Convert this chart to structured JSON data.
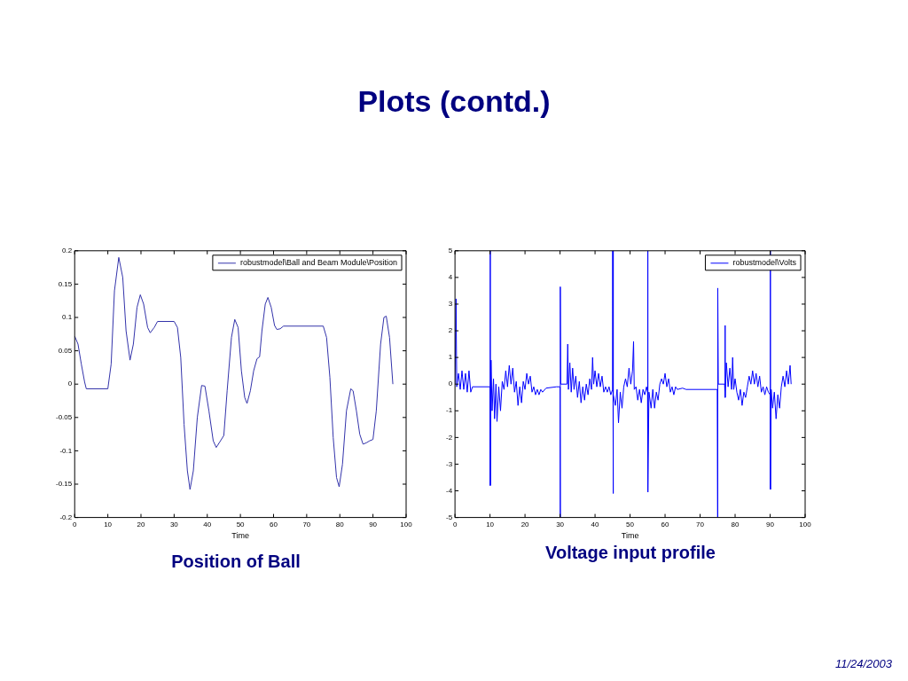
{
  "chart_data": [
    {
      "type": "line",
      "title": "Position of Ball",
      "annotations": [
        "Plots (contd.)",
        "11/24/2003"
      ],
      "xlabel": "Time",
      "legend": "top right",
      "grid": false,
      "marker": "none",
      "line_style": "solid",
      "xlim": [
        0,
        100
      ],
      "xticks": [
        0,
        10,
        20,
        30,
        40,
        50,
        60,
        70,
        80,
        90,
        100
      ],
      "ylim": [
        -0.2,
        0.2
      ],
      "yticks": [
        -0.2,
        -0.15,
        -0.1,
        -0.05,
        0,
        0.05,
        0.1,
        0.15,
        0.2
      ],
      "series": [
        {
          "name": "robustmodel\\Ball and Beam Module\\Position",
          "color": "#3333aa",
          "x": [
            0,
            1,
            2,
            3,
            3.5,
            10,
            11,
            12,
            13.3,
            14.5,
            15.5,
            16.7,
            17.7,
            18.8,
            19.8,
            20.8,
            22,
            22.8,
            24,
            25,
            30,
            31,
            32,
            33,
            34,
            34.8,
            35.8,
            37,
            38.3,
            39.3,
            40.5,
            41.8,
            42.7,
            44,
            45,
            46,
            47.3,
            48.3,
            49.3,
            50.3,
            51.3,
            52,
            53,
            54,
            55,
            55.8,
            56.5,
            57.5,
            58.3,
            59.3,
            60.3,
            61,
            62,
            63,
            75,
            76,
            77,
            78,
            79,
            79.8,
            80.8,
            82,
            83.3,
            84,
            85,
            86,
            87,
            88,
            89,
            90,
            91,
            92.3,
            93.3,
            94,
            95,
            96
          ],
          "values": [
            0.072,
            0.06,
            0.03,
            0.003,
            -0.007,
            -0.007,
            0.03,
            0.14,
            0.19,
            0.16,
            0.08,
            0.036,
            0.06,
            0.115,
            0.134,
            0.12,
            0.085,
            0.077,
            0.085,
            0.094,
            0.094,
            0.085,
            0.04,
            -0.06,
            -0.13,
            -0.158,
            -0.13,
            -0.05,
            -0.002,
            -0.003,
            -0.04,
            -0.085,
            -0.095,
            -0.085,
            -0.077,
            -0.01,
            0.07,
            0.097,
            0.085,
            0.02,
            -0.02,
            -0.029,
            -0.01,
            0.02,
            0.038,
            0.041,
            0.08,
            0.12,
            0.13,
            0.115,
            0.088,
            0.082,
            0.083,
            0.087,
            0.087,
            0.07,
            0.01,
            -0.08,
            -0.14,
            -0.154,
            -0.12,
            -0.04,
            -0.007,
            -0.01,
            -0.04,
            -0.075,
            -0.09,
            -0.088,
            -0.085,
            -0.083,
            -0.04,
            0.06,
            0.1,
            0.102,
            0.07,
            0
          ]
        }
      ]
    },
    {
      "type": "line",
      "title": "Voltage input profile",
      "xlabel": "Time",
      "legend": "top right",
      "grid": false,
      "marker": "none",
      "line_style": "solid",
      "xlim": [
        0,
        100
      ],
      "xticks": [
        0,
        10,
        20,
        30,
        40,
        50,
        60,
        70,
        80,
        90,
        100
      ],
      "ylim": [
        -5,
        5
      ],
      "yticks": [
        -5,
        -4,
        -3,
        -2,
        -1,
        0,
        1,
        2,
        3,
        4,
        5
      ],
      "series": [
        {
          "name": "robustmodel\\Volts",
          "color": "#0000ff",
          "x": [
            0,
            0.3,
            0.5,
            1,
            1.5,
            2,
            2.5,
            3,
            3.5,
            4,
            4.5,
            5,
            10,
            10.05,
            10.1,
            10.3,
            10.6,
            11,
            11.3,
            11.7,
            12,
            12.5,
            13,
            13.5,
            14,
            14.5,
            15,
            15.5,
            16,
            16.5,
            17,
            17.5,
            18,
            18.5,
            19,
            19.5,
            20,
            20.5,
            21,
            21.5,
            22,
            22.5,
            23,
            23.5,
            24,
            24.5,
            25,
            26,
            29,
            30,
            30.05,
            30.1,
            30.2,
            32,
            32.2,
            32.4,
            32.8,
            33.2,
            33.6,
            34,
            34.5,
            35,
            35.5,
            36,
            36.5,
            37,
            37.5,
            38,
            38.5,
            39,
            39.3,
            39.6,
            40,
            40.5,
            41,
            41.5,
            42,
            42.5,
            43,
            43.5,
            44,
            44.5,
            45,
            45.05,
            45.1,
            45.3,
            45.8,
            46.3,
            46.7,
            47.2,
            47.7,
            48.2,
            48.7,
            49.2,
            49.7,
            50.2,
            50.7,
            51,
            51.2,
            51.7,
            52.2,
            52.7,
            53.2,
            53.7,
            54.2,
            54.7,
            55,
            55.05,
            55.1,
            55.4,
            56,
            56.5,
            57,
            57.5,
            58,
            58.5,
            59,
            59.5,
            60,
            60.5,
            61,
            61.5,
            62,
            62.5,
            63,
            63.5,
            65,
            66,
            74.9,
            75,
            75.05,
            75.2,
            77,
            77.1,
            77.2,
            77.5,
            78,
            78.5,
            79,
            79.3,
            79.6,
            80,
            80.5,
            81,
            81.5,
            82,
            82.5,
            83,
            83.5,
            84,
            84.5,
            85,
            85.5,
            86,
            86.5,
            87,
            87.5,
            88,
            88.5,
            89,
            89.5,
            90,
            90.05,
            90.1,
            90.3,
            90.7,
            91.2,
            91.7,
            92.2,
            92.7,
            93.2,
            93.7,
            94.2,
            94.7,
            95.2,
            95.7,
            96
          ],
          "values": [
            0,
            3.2,
            -0.1,
            0.4,
            -0.2,
            0.5,
            -0.2,
            0.4,
            -0.3,
            0.5,
            -0.3,
            -0.1,
            -0.1,
            5,
            -3.8,
            0.9,
            -1,
            0.2,
            -1.3,
            0,
            -1.4,
            -0.1,
            -1,
            0.1,
            -0.2,
            0.5,
            -0.1,
            0.7,
            0,
            0.6,
            -0.3,
            0.1,
            -0.8,
            -0.1,
            -0.7,
            0.1,
            -0.2,
            0.4,
            0,
            0.3,
            -0.3,
            -0.1,
            -0.4,
            -0.2,
            -0.4,
            -0.2,
            -0.3,
            -0.15,
            -0.1,
            -0.1,
            -5,
            3.65,
            0,
            0,
            1.5,
            -0.2,
            0.8,
            -0.3,
            0.6,
            -0.2,
            0.3,
            -0.5,
            0.1,
            -0.7,
            -0.1,
            -0.6,
            0,
            -0.4,
            0.2,
            -0.2,
            1,
            0,
            0.5,
            -0.1,
            0.4,
            -0.1,
            0.3,
            -0.3,
            -0.1,
            -0.3,
            -0.1,
            -0.4,
            -0.2,
            5,
            -4.1,
            -0.4,
            -0.8,
            -0.2,
            -1.45,
            -0.3,
            -0.9,
            -0.1,
            0.2,
            -0.1,
            0.6,
            0,
            0.5,
            1.6,
            -0.2,
            -0.1,
            -0.6,
            -0.2,
            -0.7,
            -0.2,
            -0.4,
            -0.1,
            -0.3,
            5,
            -4.05,
            -0.3,
            -0.9,
            -0.2,
            -0.9,
            -0.3,
            -0.6,
            0,
            0.2,
            0,
            0.4,
            -0.1,
            0.2,
            -0.3,
            -0.1,
            -0.4,
            -0.1,
            -0.2,
            -0.15,
            -0.2,
            -0.2,
            -5,
            3.6,
            0,
            0,
            2.2,
            -0.5,
            0.8,
            -0.1,
            0.6,
            -0.2,
            1,
            -0.2,
            0.2,
            -0.3,
            -0.6,
            -0.2,
            -0.8,
            -0.3,
            -0.5,
            -0.1,
            0.3,
            0,
            0.5,
            0,
            0.4,
            -0.1,
            0.3,
            -0.3,
            -0.1,
            -0.4,
            -0.1,
            -0.3,
            -0.4,
            5,
            -3.95,
            -0.2,
            -0.9,
            -0.3,
            -1.3,
            -0.4,
            -0.9,
            -0.1,
            0.3,
            -0.1,
            0.5,
            0,
            0.7,
            0
          ]
        }
      ]
    }
  ]
}
